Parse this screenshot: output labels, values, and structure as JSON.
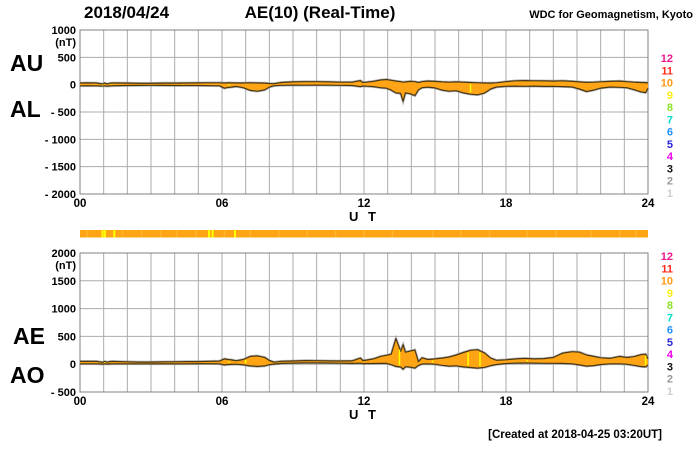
{
  "header": {
    "date": "2018/04/24",
    "title": "AE(10) (Real-Time)",
    "source": "WDC for Geomagnetism, Kyoto"
  },
  "footer": {
    "created": "[Created at 2018-04-25 03:20UT]"
  },
  "colors": {
    "band_fill": "#FFA414",
    "band_edge": "#4A3814",
    "band_halo": "#9C9C9C",
    "grid": "#ABABAB",
    "border": "#808080",
    "streak_yellow": "#FFFF00",
    "bar_fill": "#FFA414",
    "bar_light": "#FFB52E",
    "text": "#000000"
  },
  "station_legend": {
    "items": [
      {
        "label": "12",
        "color": "#F0148C"
      },
      {
        "label": "11",
        "color": "#FF2A1A"
      },
      {
        "label": "10",
        "color": "#FF9914"
      },
      {
        "label": "9",
        "color": "#FFEC13"
      },
      {
        "label": "8",
        "color": "#8DE32A"
      },
      {
        "label": "7",
        "color": "#00DFC8"
      },
      {
        "label": "6",
        "color": "#2091FF"
      },
      {
        "label": "5",
        "color": "#2A25DD"
      },
      {
        "label": "4",
        "color": "#F000F0"
      },
      {
        "label": "3",
        "color": "#111111"
      },
      {
        "label": "2",
        "color": "#999999"
      },
      {
        "label": "1",
        "color": "#CCCCCC"
      }
    ]
  },
  "availability_bar": {
    "yellow_streaks_hours": [
      0.95,
      1.05,
      1.45,
      5.45,
      5.6,
      6.55
    ],
    "light_streaks_hours": [
      0.3,
      1.8,
      2.6,
      3.4,
      4.1,
      4.9,
      6.1,
      7.2,
      8.4,
      9.6,
      10.8,
      12.0,
      13.2,
      14.9,
      16.1,
      17.3,
      18.9,
      20.1,
      21.6,
      22.8,
      23.5
    ]
  },
  "chart_data": [
    {
      "type": "area",
      "title": "AU / AL indices (nT)",
      "row_labels": [
        "AU",
        "AL"
      ],
      "unit": "(nT)",
      "xlabel": "U T",
      "xlim": [
        0,
        24
      ],
      "xticks": [
        0,
        6,
        12,
        18,
        24
      ],
      "xtick_labels": [
        "00",
        "06",
        "12",
        "18",
        "24"
      ],
      "ylim": [
        -2000,
        1000
      ],
      "yticks": [
        1000,
        500,
        0,
        -500,
        -1000,
        -1500,
        -2000
      ],
      "ytick_labels": [
        "1000",
        "500",
        "0",
        "- 500",
        "- 1000",
        "- 1500",
        "- 2000"
      ],
      "grid": true,
      "yellow_streaks": [
        0.6,
        0.95,
        1.3,
        4.35,
        5.3,
        6.3,
        16.5
      ],
      "x": [
        0,
        0.3,
        0.7,
        0.95,
        1.05,
        1.15,
        1.25,
        1.35,
        1.5,
        2,
        2.5,
        3,
        3.5,
        4,
        4.5,
        5,
        5.5,
        5.9,
        6.1,
        6.25,
        6.4,
        6.6,
        6.9,
        7.2,
        7.5,
        7.8,
        8.0,
        8.2,
        8.5,
        9,
        9.5,
        10,
        10.5,
        11,
        11.5,
        11.85,
        11.95,
        12.1,
        12.4,
        12.7,
        12.95,
        13.15,
        13.35,
        13.55,
        13.65,
        13.75,
        13.95,
        14.15,
        14.3,
        14.45,
        14.7,
        15,
        15.3,
        15.6,
        15.9,
        16.2,
        16.5,
        16.8,
        17.1,
        17.35,
        17.6,
        18,
        18.4,
        18.8,
        19.2,
        19.6,
        20,
        20.4,
        20.8,
        21.1,
        21.4,
        21.7,
        22,
        22.4,
        22.8,
        23.1,
        23.4,
        23.7,
        23.9,
        24
      ],
      "series": [
        {
          "name": "AU",
          "values": [
            30,
            32,
            30,
            12,
            28,
            10,
            25,
            30,
            30,
            28,
            25,
            25,
            28,
            28,
            30,
            32,
            35,
            35,
            30,
            35,
            32,
            30,
            30,
            35,
            30,
            28,
            22,
            18,
            40,
            50,
            55,
            55,
            50,
            45,
            45,
            75,
            40,
            45,
            60,
            85,
            95,
            80,
            65,
            55,
            45,
            50,
            60,
            55,
            40,
            55,
            65,
            60,
            50,
            45,
            50,
            45,
            40,
            35,
            30,
            28,
            35,
            55,
            70,
            75,
            70,
            68,
            65,
            70,
            60,
            50,
            42,
            45,
            52,
            60,
            65,
            55,
            45,
            40,
            38,
            30
          ]
        },
        {
          "name": "AL",
          "values": [
            -20,
            -18,
            -20,
            -25,
            -20,
            -28,
            -22,
            -20,
            -18,
            -15,
            -13,
            -12,
            -14,
            -15,
            -16,
            -15,
            -18,
            -20,
            -65,
            -50,
            -45,
            -32,
            -55,
            -105,
            -120,
            -95,
            -45,
            -18,
            -12,
            -8,
            -10,
            -8,
            -10,
            -12,
            -15,
            -35,
            -25,
            -28,
            -35,
            -55,
            -65,
            -100,
            -150,
            -160,
            -305,
            -150,
            -165,
            -200,
            -95,
            -55,
            -45,
            -60,
            -100,
            -120,
            -110,
            -150,
            -175,
            -185,
            -150,
            -80,
            -42,
            -30,
            -26,
            -30,
            -27,
            -32,
            -30,
            -35,
            -42,
            -80,
            -125,
            -100,
            -62,
            -42,
            -48,
            -55,
            -90,
            -130,
            -145,
            -65
          ]
        }
      ]
    },
    {
      "type": "area",
      "title": "AE / AO indices (nT)",
      "row_labels": [
        "AE",
        "AO"
      ],
      "unit": "(nT)",
      "xlabel": "U T",
      "xlim": [
        0,
        24
      ],
      "xticks": [
        0,
        6,
        12,
        18,
        24
      ],
      "xtick_labels": [
        "00",
        "06",
        "12",
        "18",
        "24"
      ],
      "ylim": [
        -500,
        2000
      ],
      "yticks": [
        2000,
        1500,
        1000,
        500,
        0,
        -500
      ],
      "ytick_labels": [
        "2000",
        "1500",
        "1000",
        "500",
        "0",
        "- 500"
      ],
      "grid": true,
      "yellow_streaks": [
        1.05,
        6.3,
        7.0,
        13.5,
        14.9,
        16.4,
        16.9,
        18.9,
        23.9
      ],
      "x": [
        0,
        0.3,
        0.7,
        0.95,
        1.05,
        1.15,
        1.25,
        1.35,
        1.5,
        2,
        2.5,
        3,
        3.5,
        4,
        4.5,
        5,
        5.5,
        5.9,
        6.1,
        6.25,
        6.4,
        6.6,
        6.9,
        7.2,
        7.5,
        7.8,
        8.0,
        8.2,
        8.5,
        9,
        9.5,
        10,
        10.5,
        11,
        11.5,
        11.85,
        11.95,
        12.1,
        12.4,
        12.7,
        12.95,
        13.15,
        13.35,
        13.55,
        13.65,
        13.75,
        13.95,
        14.15,
        14.3,
        14.45,
        14.7,
        15,
        15.3,
        15.6,
        15.9,
        16.2,
        16.5,
        16.8,
        17.1,
        17.35,
        17.6,
        18,
        18.4,
        18.8,
        19.2,
        19.6,
        20,
        20.4,
        20.8,
        21.1,
        21.4,
        21.7,
        22,
        22.4,
        22.8,
        23.1,
        23.4,
        23.7,
        23.9,
        24
      ],
      "series": [
        {
          "name": "AE",
          "values": [
            50,
            50,
            50,
            35,
            48,
            36,
            46,
            50,
            48,
            43,
            38,
            37,
            42,
            43,
            46,
            47,
            53,
            55,
            95,
            85,
            77,
            62,
            85,
            140,
            150,
            123,
            67,
            36,
            52,
            58,
            65,
            63,
            60,
            57,
            60,
            110,
            65,
            73,
            95,
            140,
            160,
            180,
            460,
            230,
            350,
            215,
            235,
            255,
            45,
            115,
            85,
            95,
            110,
            130,
            165,
            210,
            250,
            260,
            200,
            110,
            70,
            80,
            95,
            105,
            95,
            100,
            120,
            200,
            225,
            215,
            165,
            140,
            115,
            105,
            140,
            120,
            135,
            170,
            180,
            95
          ]
        },
        {
          "name": "AO",
          "values": [
            8,
            8,
            8,
            2,
            7,
            1,
            5,
            8,
            8,
            8,
            7,
            7,
            8,
            8,
            8,
            9,
            9,
            8,
            -12,
            -5,
            -3,
            0,
            -10,
            -30,
            -40,
            -30,
            -8,
            2,
            14,
            20,
            23,
            24,
            22,
            18,
            15,
            18,
            10,
            12,
            12,
            15,
            15,
            -8,
            -40,
            -50,
            -90,
            -45,
            -52,
            -70,
            -22,
            3,
            8,
            0,
            -20,
            -35,
            -28,
            -48,
            -60,
            -70,
            -55,
            -25,
            -5,
            12,
            20,
            22,
            20,
            17,
            16,
            15,
            8,
            -12,
            -35,
            -25,
            -5,
            8,
            8,
            0,
            -20,
            -42,
            -48,
            -12
          ]
        }
      ]
    }
  ]
}
